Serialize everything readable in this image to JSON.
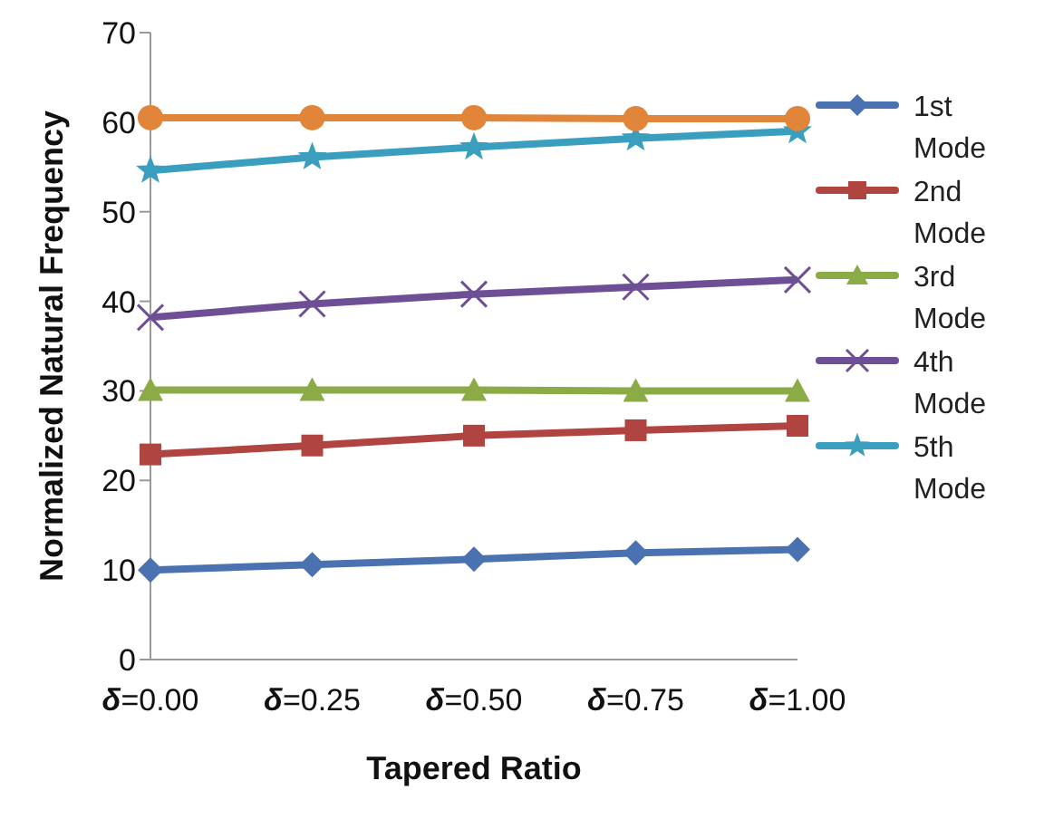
{
  "chart_data": {
    "type": "line",
    "xlabel": "Tapered Ratio",
    "ylabel": "Normalized Natural Frequency",
    "categories": [
      "δ=0.00",
      "δ=0.25",
      "δ=0.50",
      "δ=0.75",
      "δ=1.00"
    ],
    "series": [
      {
        "name": "1st Mode",
        "color": "#4a72b0",
        "marker": "diamond",
        "values": [
          10.0,
          10.6,
          11.2,
          11.9,
          12.3
        ]
      },
      {
        "name": "2nd Mode",
        "color": "#b04440",
        "marker": "square",
        "values": [
          22.9,
          23.9,
          25.0,
          25.6,
          26.1
        ]
      },
      {
        "name": "3rd Mode",
        "color": "#8aab45",
        "marker": "triangle",
        "values": [
          30.1,
          30.1,
          30.1,
          30.0,
          30.0
        ]
      },
      {
        "name": "4th Mode",
        "color": "#6e4f96",
        "marker": "cross",
        "values": [
          38.2,
          39.7,
          40.8,
          41.6,
          42.4
        ]
      },
      {
        "name": "5th Mode",
        "color": "#3a9fbf",
        "marker": "star",
        "values": [
          54.6,
          56.1,
          57.2,
          58.2,
          59.0
        ]
      },
      {
        "color": "#e0853a",
        "marker": "circle",
        "values": [
          60.5,
          60.5,
          60.5,
          60.4,
          60.4
        ]
      }
    ],
    "ylim": [
      0,
      70
    ],
    "yticks": [
      0,
      10,
      20,
      30,
      40,
      50,
      60,
      70
    ],
    "grid": false,
    "legend": "right",
    "line_style": "solid"
  }
}
